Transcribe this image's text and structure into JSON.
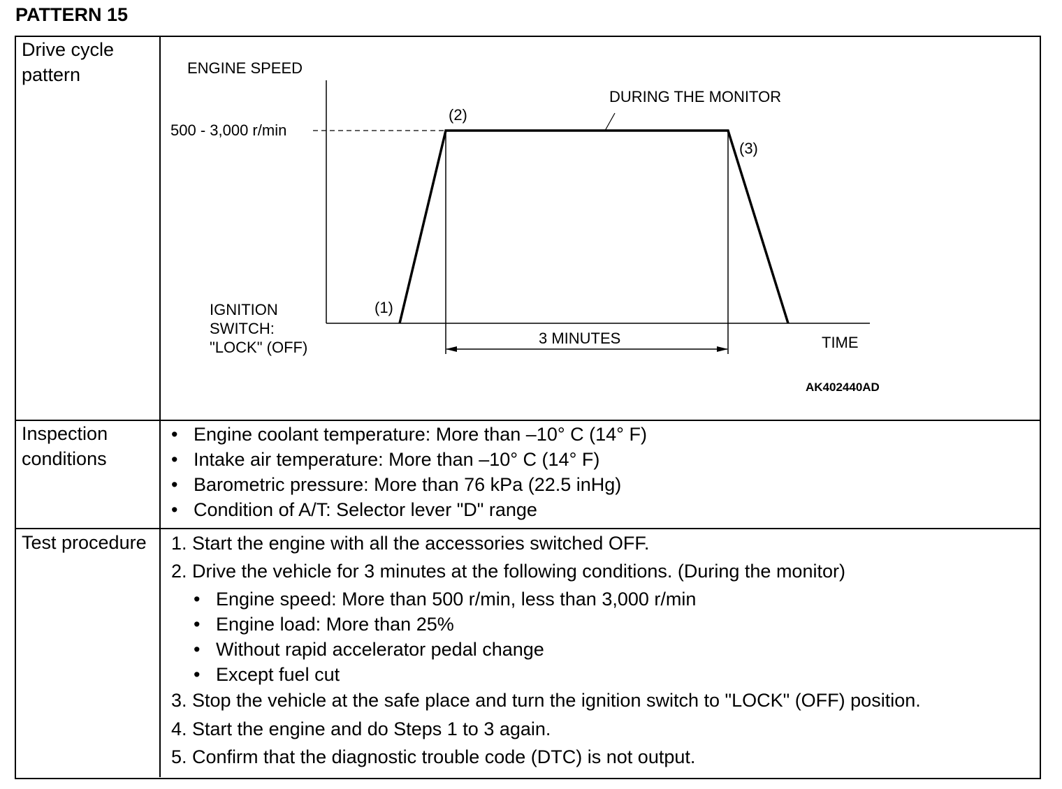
{
  "title": "PATTERN 15",
  "rows": {
    "drive": {
      "label": "Drive cycle pattern",
      "diagram": {
        "y_label": "ENGINE SPEED",
        "x_label": "TIME",
        "speed_range": "500 - 3,000 r/min",
        "monitor_label": "DURING THE MONITOR",
        "point1": "(1)",
        "point2": "(2)",
        "point3": "(3)",
        "ignition_label_1": "IGNITION",
        "ignition_label_2": "SWITCH:",
        "ignition_label_3": "\"LOCK\" (OFF)",
        "duration": "3 MINUTES",
        "figure_code": "AK402440AD"
      }
    },
    "inspection": {
      "label": "Inspection conditions",
      "items": [
        "Engine coolant temperature: More than –10° C (14° F)",
        "Intake air temperature: More than –10° C (14° F)",
        "Barometric pressure: More than 76 kPa (22.5 inHg)",
        "Condition of A/T: Selector lever \"D\" range"
      ]
    },
    "procedure": {
      "label": "Test procedure",
      "steps": [
        "1. Start the engine with all the accessories switched OFF.",
        "2. Drive the vehicle for 3 minutes at the following conditions. (During the monitor)",
        "3. Stop the vehicle at the safe place and turn the ignition switch to \"LOCK\" (OFF) position.",
        "4. Start the engine and do Steps 1 to 3 again.",
        "5. Confirm that the diagnostic trouble code (DTC) is not output."
      ],
      "sub_items": [
        "Engine speed: More than 500 r/min, less than 3,000 r/min",
        "Engine load: More than 25%",
        "Without rapid accelerator pedal change",
        "Except fuel cut"
      ]
    }
  }
}
